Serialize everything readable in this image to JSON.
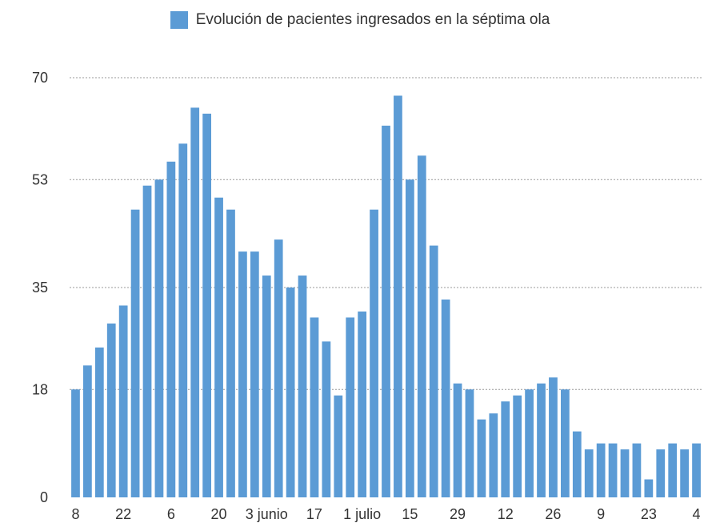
{
  "colors": {
    "bar": "#5b9bd5",
    "grid": "#9a9a9a",
    "text": "#333333"
  },
  "chart_data": {
    "type": "bar",
    "legend": "top-center",
    "series": [
      {
        "name": "Evolución de pacientes ingresados en la séptima ola",
        "values": [
          18,
          22,
          25,
          29,
          32,
          48,
          52,
          53,
          56,
          59,
          65,
          64,
          50,
          48,
          41,
          41,
          37,
          43,
          35,
          37,
          30,
          26,
          17,
          30,
          31,
          48,
          62,
          67,
          53,
          57,
          42,
          33,
          19,
          18,
          13,
          14,
          16,
          17,
          18,
          19,
          20,
          18,
          11,
          8,
          9,
          9,
          8,
          9,
          3,
          8,
          9,
          8,
          9
        ]
      }
    ],
    "xtick_labels": [
      {
        "index": 0,
        "label": "8"
      },
      {
        "index": 4,
        "label": "22"
      },
      {
        "index": 8,
        "label": "6"
      },
      {
        "index": 12,
        "label": "20"
      },
      {
        "index": 16,
        "label": "3 junio"
      },
      {
        "index": 20,
        "label": "17"
      },
      {
        "index": 24,
        "label": "1 julio"
      },
      {
        "index": 28,
        "label": "15"
      },
      {
        "index": 32,
        "label": "29"
      },
      {
        "index": 36,
        "label": "12"
      },
      {
        "index": 40,
        "label": "26"
      },
      {
        "index": 44,
        "label": "9"
      },
      {
        "index": 48,
        "label": "23"
      },
      {
        "index": 52,
        "label": "4"
      }
    ],
    "yticks": [
      0,
      18,
      35,
      53,
      70
    ],
    "ylim": [
      0,
      70
    ],
    "grid": true,
    "xlabel": "",
    "ylabel": ""
  }
}
